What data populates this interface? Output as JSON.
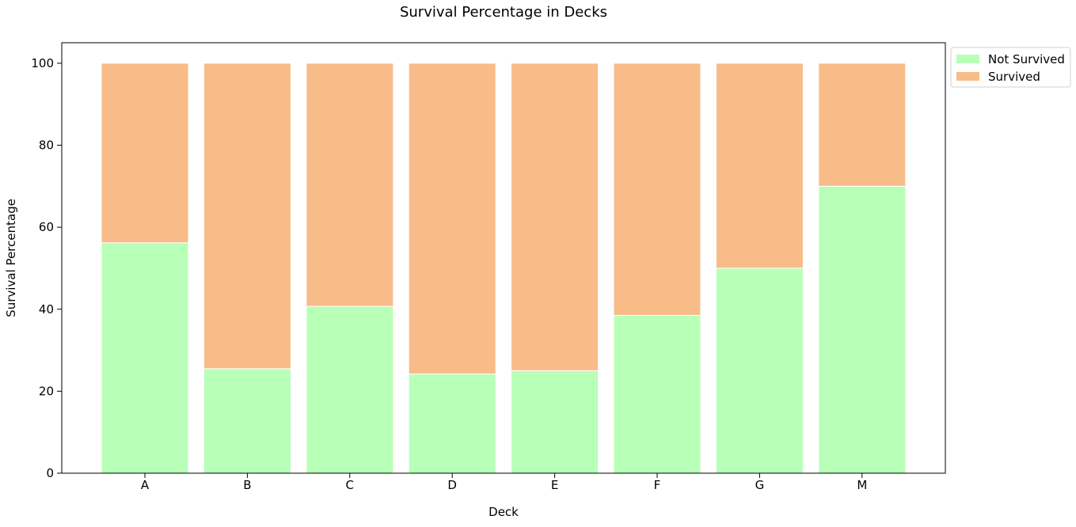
{
  "chart_data": {
    "type": "bar",
    "stacked": true,
    "title": "Survival Percentage in Decks",
    "xlabel": "Deck",
    "ylabel": "Survival Percentage",
    "categories": [
      "A",
      "B",
      "C",
      "D",
      "E",
      "F",
      "G",
      "M"
    ],
    "series": [
      {
        "name": "Not Survived",
        "color": "#b8ffb8",
        "values": [
          56.2,
          25.5,
          40.7,
          24.2,
          25.0,
          38.5,
          50.0,
          70.0
        ]
      },
      {
        "name": "Survived",
        "color": "#f8bc88",
        "values": [
          43.8,
          74.5,
          59.3,
          75.8,
          75.0,
          61.5,
          50.0,
          30.0
        ]
      }
    ],
    "ylim": [
      0,
      105
    ],
    "yticks": [
      0,
      20,
      40,
      60,
      80,
      100
    ],
    "grid": false,
    "legend": "outside-top-right"
  }
}
